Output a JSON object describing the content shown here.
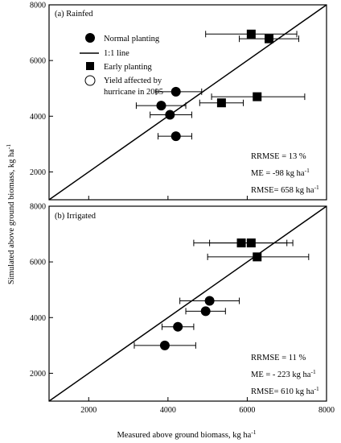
{
  "y_axis_label": "Simulated above ground biomass, kg ha",
  "y_axis_label_sup": "-1",
  "x_axis_label": "Measured above ground biomass, kg ha",
  "x_axis_label_sup": "-1",
  "legend": {
    "normal": "Normal planting",
    "line": "1:1 line",
    "early": "Early planting",
    "affected_line1": "Yield affected by",
    "affected_line2": "hurricane in 2005"
  },
  "chart_data": [
    {
      "type": "scatter",
      "title": "(a) Rainfed",
      "xlim": [
        1000,
        8000
      ],
      "ylim": [
        1000,
        8000
      ],
      "x_ticks": [
        2000,
        4000,
        6000,
        8000
      ],
      "y_ticks": [
        2000,
        4000,
        6000,
        8000
      ],
      "reference_line": "1:1",
      "series": [
        {
          "name": "Normal planting",
          "marker": "circle",
          "points": [
            {
              "x": 4200,
              "y": 4880,
              "xerr": [
                3700,
                4850
              ]
            },
            {
              "x": 3830,
              "y": 4380,
              "xerr": [
                3200,
                4450
              ]
            },
            {
              "x": 4050,
              "y": 4050,
              "xerr": [
                3550,
                4600
              ]
            },
            {
              "x": 4200,
              "y": 3280,
              "xerr": [
                3750,
                4600
              ]
            }
          ]
        },
        {
          "name": "Early planting",
          "marker": "square",
          "points": [
            {
              "x": 6100,
              "y": 6950,
              "xerr": [
                4950,
                7250
              ]
            },
            {
              "x": 6550,
              "y": 6780,
              "xerr": [
                5800,
                7300
              ]
            },
            {
              "x": 6250,
              "y": 4700,
              "xerr": [
                5100,
                7450
              ]
            },
            {
              "x": 5350,
              "y": 4480,
              "xerr": [
                4800,
                5900
              ]
            }
          ]
        }
      ],
      "stats": {
        "rrmse": "RRMSE = 13 %",
        "me": "ME = -98 kg ha",
        "rmse": "RMSE= 658 kg ha",
        "unit_sup": "-1"
      }
    },
    {
      "type": "scatter",
      "title": "(b) Irrigated",
      "xlim": [
        1000,
        8000
      ],
      "ylim": [
        1000,
        8000
      ],
      "x_ticks": [
        2000,
        4000,
        6000,
        8000
      ],
      "y_ticks": [
        2000,
        4000,
        6000,
        8000
      ],
      "reference_line": "1:1",
      "series": [
        {
          "name": "Normal planting",
          "marker": "circle",
          "points": [
            {
              "x": 5050,
              "y": 4600,
              "xerr": [
                4300,
                5800
              ]
            },
            {
              "x": 4950,
              "y": 4230,
              "xerr": [
                4450,
                5450
              ]
            },
            {
              "x": 4250,
              "y": 3670,
              "xerr": [
                3850,
                4650
              ]
            },
            {
              "x": 3920,
              "y": 3000,
              "xerr": [
                3150,
                4700
              ]
            }
          ]
        },
        {
          "name": "Early planting",
          "marker": "square",
          "points": [
            {
              "x": 5850,
              "y": 6680,
              "xerr": [
                4650,
                7000
              ]
            },
            {
              "x": 6100,
              "y": 6680,
              "xerr": [
                5050,
                7150
              ]
            },
            {
              "x": 6250,
              "y": 6180,
              "xerr": [
                5000,
                7550
              ]
            }
          ]
        }
      ],
      "stats": {
        "rrmse": "RRMSE = 11 %",
        "me": "ME = - 223 kg ha",
        "rmse": "RMSE= 610 kg ha",
        "unit_sup": "-1"
      }
    }
  ]
}
